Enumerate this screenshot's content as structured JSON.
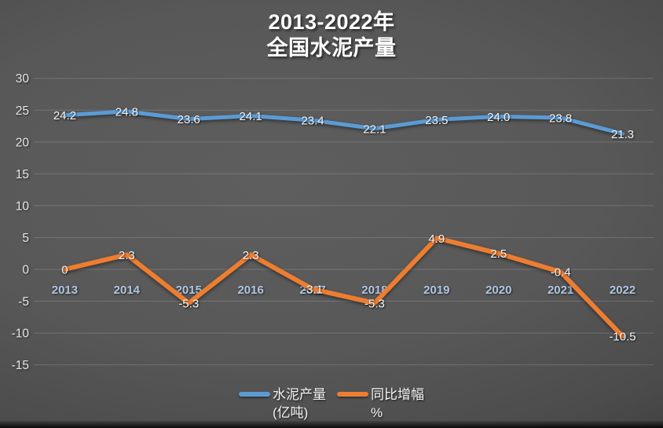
{
  "title": {
    "line1": "2013-2022年",
    "line2": "全国水泥产量"
  },
  "chart_data": {
    "type": "line",
    "title": "2013-2022年 全国水泥产量",
    "categories": [
      "2013",
      "2014",
      "2015",
      "2016",
      "2017",
      "2018",
      "2019",
      "2020",
      "2021",
      "2022"
    ],
    "series": [
      {
        "name": "水泥产量 (亿吨)",
        "name_line1": "水泥产量",
        "name_line2": "(亿吨)",
        "color": "#5B9BD5",
        "values": [
          24.2,
          24.8,
          23.6,
          24.1,
          23.4,
          22.1,
          23.5,
          24.0,
          23.8,
          21.3
        ],
        "labels": [
          "24.2",
          "24.8",
          "23.6",
          "24.1",
          "23.4",
          "22.1",
          "23.5",
          "24.0",
          "23.8",
          "21.3"
        ]
      },
      {
        "name": "同比增幅 %",
        "name_line1": "同比增幅",
        "name_line2": "%",
        "color": "#ED7D31",
        "values": [
          0,
          2.3,
          -5.3,
          2.3,
          -3.1,
          -5.3,
          4.9,
          2.5,
          -0.4,
          -10.5
        ],
        "labels": [
          "0",
          "2.3",
          "-5.3",
          "2.3",
          "-3.1",
          "-5.3",
          "4.9",
          "2.5",
          "-0.4",
          "-10.5"
        ]
      }
    ],
    "y_axis": {
      "min": -15,
      "max": 30,
      "step": 5,
      "ticks": [
        "30",
        "25",
        "20",
        "15",
        "10",
        "5",
        "0",
        "-5",
        "-10",
        "-15"
      ]
    },
    "grid": true,
    "legend_position": "bottom",
    "xlabel": "",
    "ylabel": ""
  },
  "colors": {
    "series_blue": "#5B9BD5",
    "series_orange": "#ED7D31",
    "year_label": "#AEC6E2",
    "data_label": "#F5F5F5",
    "tick_label": "#E6E6E6"
  }
}
